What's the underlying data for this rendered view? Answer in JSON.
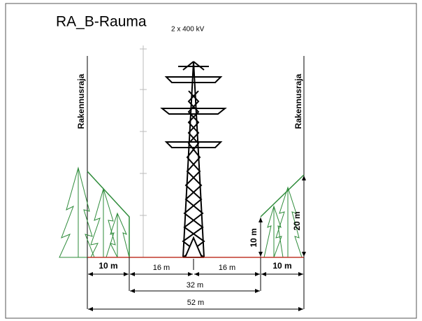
{
  "header": {
    "title": "RA_B-Rauma",
    "subtitle": "2 x 400 kV"
  },
  "boundaries": [
    "Rakennusraja",
    "Rakennusraja"
  ],
  "horizontal_dimensions": [
    "10 m",
    "16 m",
    "16 m",
    "10 m",
    "32 m",
    "52 m"
  ],
  "vertical_dimensions": [
    "10 m",
    "20 m"
  ]
}
